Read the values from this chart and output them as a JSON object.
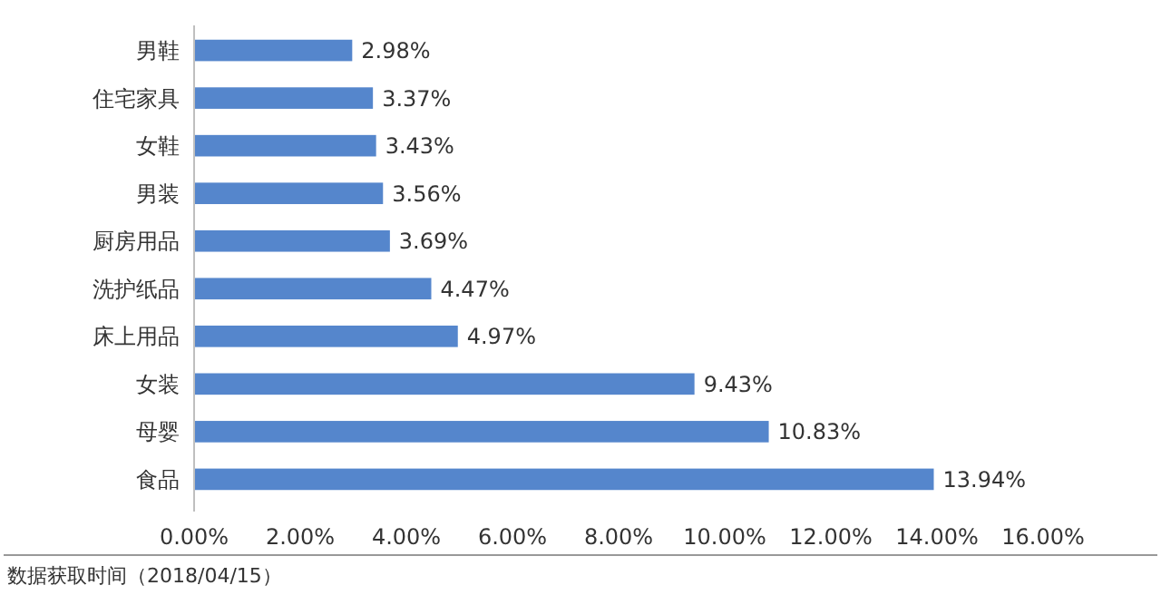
{
  "chart_data": {
    "type": "bar",
    "orientation": "horizontal",
    "categories": [
      "男鞋",
      "住宅家具",
      "女鞋",
      "男装",
      "厨房用品",
      "洗护纸品",
      "床上用品",
      "女装",
      "母婴",
      "食品"
    ],
    "values": [
      2.98,
      3.37,
      3.43,
      3.56,
      3.69,
      4.47,
      4.97,
      9.43,
      10.83,
      13.94
    ],
    "value_labels": [
      "2.98%",
      "3.37%",
      "3.43%",
      "3.56%",
      "3.69%",
      "4.47%",
      "4.97%",
      "9.43%",
      "10.83%",
      "13.94%"
    ],
    "color": "#5586cc",
    "xlim": [
      0,
      16
    ],
    "xticks": [
      {
        "value": 0,
        "label": "0.00%"
      },
      {
        "value": 2,
        "label": "2.00%"
      },
      {
        "value": 4,
        "label": "4.00%"
      },
      {
        "value": 6,
        "label": "6.00%"
      },
      {
        "value": 8,
        "label": "8.00%"
      },
      {
        "value": 10,
        "label": "10.00%"
      },
      {
        "value": 12,
        "label": "12.00%"
      },
      {
        "value": 14,
        "label": "14.00%"
      },
      {
        "value": 16,
        "label": "16.00%"
      }
    ],
    "grid": false,
    "annotations": [
      "数据获取时间（2018/04/15）"
    ]
  }
}
